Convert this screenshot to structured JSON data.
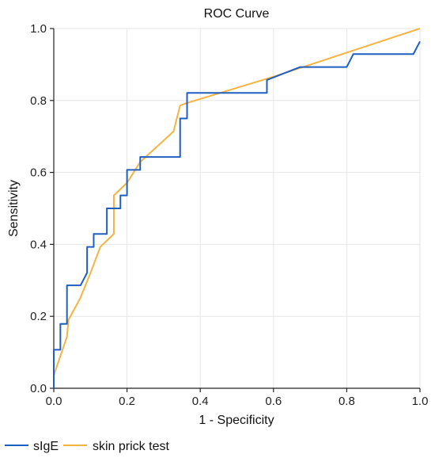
{
  "chart_data": {
    "type": "line",
    "title": "ROC Curve",
    "xlabel": "1 - Specificity",
    "ylabel": "Sensitivity",
    "xlim": [
      0,
      1
    ],
    "ylim": [
      0,
      1
    ],
    "x_ticks": [
      "0.0",
      "0.2",
      "0.4",
      "0.6",
      "0.8",
      "1.0"
    ],
    "y_ticks": [
      "0.0",
      "0.2",
      "0.4",
      "0.6",
      "0.8",
      "1.0"
    ],
    "grid": true,
    "legend_position": "bottom-left",
    "series": [
      {
        "name": "sIgE",
        "color": "#1f5fbf",
        "points": [
          [
            0,
            0
          ],
          [
            0,
            0.107
          ],
          [
            0.018,
            0.107
          ],
          [
            0.018,
            0.179
          ],
          [
            0.036,
            0.179
          ],
          [
            0.036,
            0.286
          ],
          [
            0.073,
            0.286
          ],
          [
            0.091,
            0.321
          ],
          [
            0.091,
            0.393
          ],
          [
            0.109,
            0.393
          ],
          [
            0.109,
            0.429
          ],
          [
            0.145,
            0.429
          ],
          [
            0.145,
            0.5
          ],
          [
            0.182,
            0.5
          ],
          [
            0.182,
            0.536
          ],
          [
            0.2,
            0.536
          ],
          [
            0.2,
            0.607
          ],
          [
            0.236,
            0.607
          ],
          [
            0.236,
            0.643
          ],
          [
            0.345,
            0.643
          ],
          [
            0.345,
            0.75
          ],
          [
            0.364,
            0.75
          ],
          [
            0.364,
            0.821
          ],
          [
            0.582,
            0.821
          ],
          [
            0.582,
            0.857
          ],
          [
            0.673,
            0.893
          ],
          [
            0.8,
            0.893
          ],
          [
            0.818,
            0.929
          ],
          [
            0.982,
            0.929
          ],
          [
            1.0,
            0.964
          ]
        ]
      },
      {
        "name": "skin prick test",
        "color": "#f5b342",
        "points": [
          [
            0,
            0.036
          ],
          [
            0.018,
            0.09
          ],
          [
            0.036,
            0.143
          ],
          [
            0.04,
            0.19
          ],
          [
            0.072,
            0.25
          ],
          [
            0.1,
            0.32
          ],
          [
            0.127,
            0.393
          ],
          [
            0.164,
            0.429
          ],
          [
            0.164,
            0.536
          ],
          [
            0.2,
            0.571
          ],
          [
            0.236,
            0.629
          ],
          [
            0.327,
            0.714
          ],
          [
            0.345,
            0.786
          ],
          [
            0.364,
            0.793
          ],
          [
            0.454,
            0.821
          ],
          [
            0.6,
            0.866
          ],
          [
            0.8,
            0.933
          ],
          [
            1.0,
            1.0
          ]
        ]
      }
    ]
  }
}
